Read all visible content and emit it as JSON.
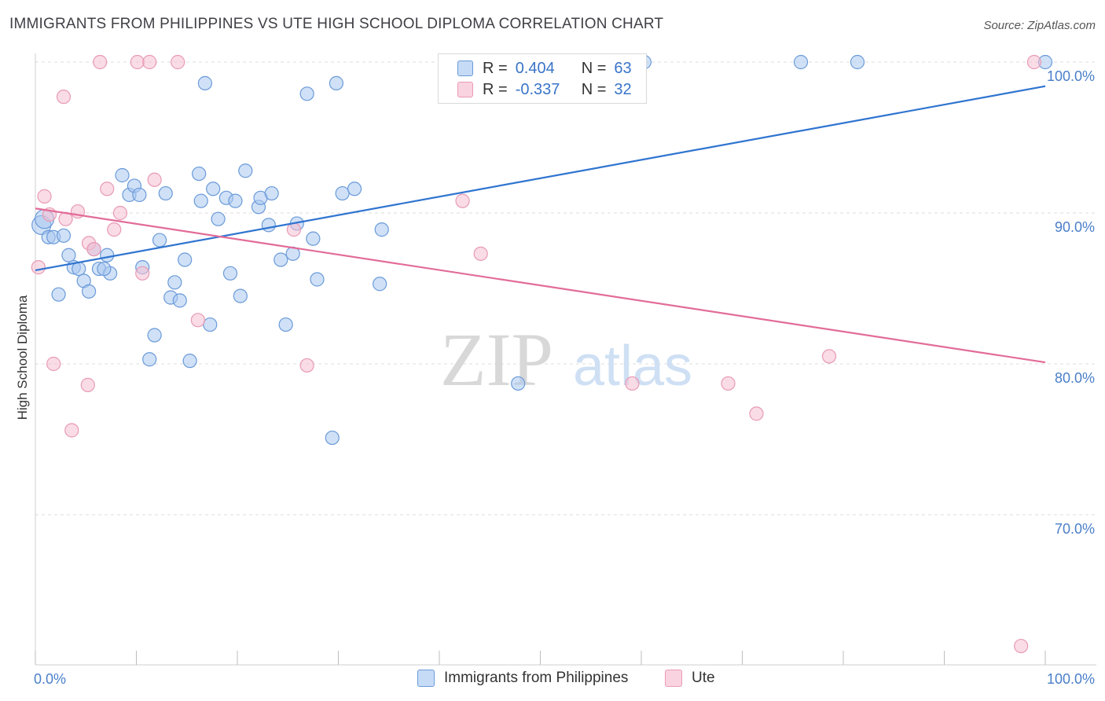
{
  "header": {
    "title": "IMMIGRANTS FROM PHILIPPINES VS UTE HIGH SCHOOL DIPLOMA CORRELATION CHART",
    "source": "Source: ZipAtlas.com"
  },
  "watermark": {
    "zip": "ZIP",
    "atlas": "atlas"
  },
  "legend": {
    "rows": [
      {
        "r_label": "R =",
        "r_value": "0.404",
        "n_label": "N =",
        "n_value": "63"
      },
      {
        "r_label": "R =",
        "r_value": "-0.337",
        "n_label": "N =",
        "n_value": "32"
      }
    ]
  },
  "bottom_legend": {
    "items": [
      "Immigrants from Philippines",
      "Ute"
    ]
  },
  "colors": {
    "blue_fill": "#a9c8f0",
    "blue_stroke": "#6a9ad8",
    "blue_line": "#2f74d0",
    "pink_fill": "#f6bfd1",
    "pink_stroke": "#e89ab4",
    "pink_line": "#e26c98",
    "tick_text": "#4a7fc9",
    "grid": "#dddddd"
  },
  "chart_data": {
    "type": "scatter",
    "title": "IMMIGRANTS FROM PHILIPPINES VS UTE HIGH SCHOOL DIPLOMA CORRELATION CHART",
    "xlabel": "",
    "ylabel": "High School Diploma",
    "xlim": [
      0,
      100
    ],
    "ylim": [
      60.5,
      101.5
    ],
    "x_tick_labels": [
      "0.0%",
      "100.0%"
    ],
    "y_ticks": [
      70,
      80,
      90,
      100
    ],
    "y_tick_labels": [
      "70.0%",
      "80.0%",
      "90.0%",
      "100.0%"
    ],
    "grid": true,
    "legend_position": "top-center",
    "series": [
      {
        "name": "Immigrants from Philippines",
        "color": "#a9c8f0",
        "r": 0.404,
        "n": 63,
        "trend": {
          "x": [
            0,
            100
          ],
          "y": [
            86.2,
            98.4
          ]
        },
        "points": [
          [
            0.6,
            89.2,
            "big"
          ],
          [
            0.9,
            89.6,
            "big"
          ],
          [
            1.3,
            88.4
          ],
          [
            1.8,
            88.4
          ],
          [
            2.8,
            88.5
          ],
          [
            2.3,
            84.6
          ],
          [
            3.3,
            87.2
          ],
          [
            3.8,
            86.4
          ],
          [
            4.3,
            86.3
          ],
          [
            4.8,
            85.5
          ],
          [
            5.3,
            84.8
          ],
          [
            5.8,
            87.6
          ],
          [
            6.3,
            86.3
          ],
          [
            7.1,
            87.2
          ],
          [
            7.4,
            86.0
          ],
          [
            6.8,
            86.3
          ],
          [
            8.6,
            92.5
          ],
          [
            9.3,
            91.2
          ],
          [
            9.8,
            91.8
          ],
          [
            10.3,
            91.2
          ],
          [
            10.6,
            86.4
          ],
          [
            11.3,
            80.3
          ],
          [
            11.8,
            81.9
          ],
          [
            12.3,
            88.2
          ],
          [
            12.9,
            91.3
          ],
          [
            13.4,
            84.4
          ],
          [
            13.8,
            85.4
          ],
          [
            14.3,
            84.2
          ],
          [
            14.8,
            86.9
          ],
          [
            15.3,
            80.2
          ],
          [
            16.2,
            92.6
          ],
          [
            16.4,
            90.8
          ],
          [
            16.8,
            98.6
          ],
          [
            17.3,
            82.6
          ],
          [
            17.6,
            91.6
          ],
          [
            18.1,
            89.6
          ],
          [
            18.9,
            91.0
          ],
          [
            19.3,
            86.0
          ],
          [
            19.8,
            90.8
          ],
          [
            20.3,
            84.5
          ],
          [
            20.8,
            92.8
          ],
          [
            22.1,
            90.4
          ],
          [
            22.3,
            91.0
          ],
          [
            23.1,
            89.2
          ],
          [
            23.4,
            91.3
          ],
          [
            24.3,
            86.9
          ],
          [
            24.8,
            82.6
          ],
          [
            25.5,
            87.3
          ],
          [
            25.9,
            89.3
          ],
          [
            26.9,
            97.9
          ],
          [
            27.5,
            88.3
          ],
          [
            27.9,
            85.6
          ],
          [
            29.4,
            75.1
          ],
          [
            29.8,
            98.6
          ],
          [
            30.4,
            91.3
          ],
          [
            31.6,
            91.6
          ],
          [
            34.1,
            85.3
          ],
          [
            34.3,
            88.9
          ],
          [
            47.8,
            78.7
          ],
          [
            60.3,
            100.0
          ],
          [
            75.8,
            100.0
          ],
          [
            81.4,
            100.0
          ],
          [
            100.0,
            100.0
          ]
        ]
      },
      {
        "name": "Ute",
        "color": "#f6bfd1",
        "r": -0.337,
        "n": 32,
        "trend": {
          "x": [
            0,
            100
          ],
          "y": [
            90.3,
            80.1
          ]
        },
        "points": [
          [
            0.3,
            86.4
          ],
          [
            0.9,
            91.1
          ],
          [
            1.4,
            89.9
          ],
          [
            1.8,
            80.0
          ],
          [
            2.8,
            97.7
          ],
          [
            3.6,
            75.6
          ],
          [
            4.2,
            90.1
          ],
          [
            5.2,
            78.6
          ],
          [
            5.3,
            88.0
          ],
          [
            5.8,
            87.6
          ],
          [
            6.4,
            100.0
          ],
          [
            7.1,
            91.6
          ],
          [
            7.8,
            88.9
          ],
          [
            8.4,
            90.0
          ],
          [
            10.1,
            100.0
          ],
          [
            10.6,
            86.0
          ],
          [
            11.3,
            100.0
          ],
          [
            11.8,
            92.2
          ],
          [
            14.1,
            100.0
          ],
          [
            16.1,
            82.9
          ],
          [
            25.6,
            88.9
          ],
          [
            26.9,
            79.9
          ],
          [
            42.3,
            90.8
          ],
          [
            44.1,
            87.3
          ],
          [
            52.9,
            100.0
          ],
          [
            59.1,
            78.7
          ],
          [
            68.6,
            78.7
          ],
          [
            71.4,
            76.7
          ],
          [
            78.6,
            80.5
          ],
          [
            97.6,
            61.3
          ],
          [
            98.9,
            100.0
          ],
          [
            3.0,
            89.6
          ]
        ]
      }
    ]
  }
}
